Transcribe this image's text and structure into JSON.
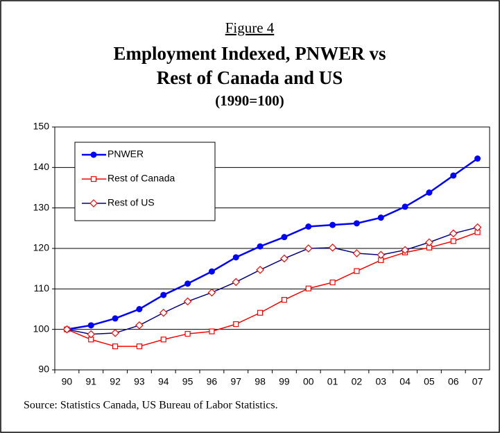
{
  "chart_data": {
    "type": "line",
    "figure_label": "Figure 4",
    "title": [
      "Employment Indexed, PNWER vs",
      "Rest of Canada and US"
    ],
    "subtitle": "(1990=100)",
    "source": "Source:  Statistics Canada, US Bureau of Labor Statistics.",
    "categories": [
      "90",
      "91",
      "92",
      "93",
      "94",
      "95",
      "96",
      "97",
      "98",
      "99",
      "00",
      "01",
      "02",
      "03",
      "04",
      "05",
      "06",
      "07"
    ],
    "series": [
      {
        "name": "PNWER",
        "color": "#0000ff",
        "marker": "circle",
        "marker_color": "#0000ff",
        "values": [
          100,
          101,
          102.7,
          105,
          108.5,
          111.3,
          114.3,
          117.8,
          120.5,
          122.8,
          125.4,
          125.8,
          126.2,
          127.6,
          130.3,
          133.8,
          138,
          142.2
        ]
      },
      {
        "name": "Rest of Canada",
        "color": "#ff0000",
        "marker": "square",
        "marker_color": "#ff0000",
        "values": [
          100,
          97.5,
          95.8,
          95.8,
          97.5,
          98.9,
          99.5,
          101.3,
          104.1,
          107.3,
          110.1,
          111.6,
          114.4,
          117.1,
          119,
          120.2,
          121.8,
          124
        ]
      },
      {
        "name": "Rest of US",
        "color": "#000080",
        "marker": "diamond",
        "marker_color": "#ff0000",
        "values": [
          100,
          98.8,
          99.1,
          101,
          104.1,
          106.9,
          109.1,
          111.7,
          114.7,
          117.5,
          120,
          120.2,
          118.8,
          118.4,
          119.6,
          121.5,
          123.7,
          125.2
        ]
      }
    ],
    "ylim": [
      90,
      150
    ],
    "yticks": [
      90,
      100,
      110,
      120,
      130,
      140,
      150
    ],
    "grid": true,
    "legend": "top-left"
  }
}
